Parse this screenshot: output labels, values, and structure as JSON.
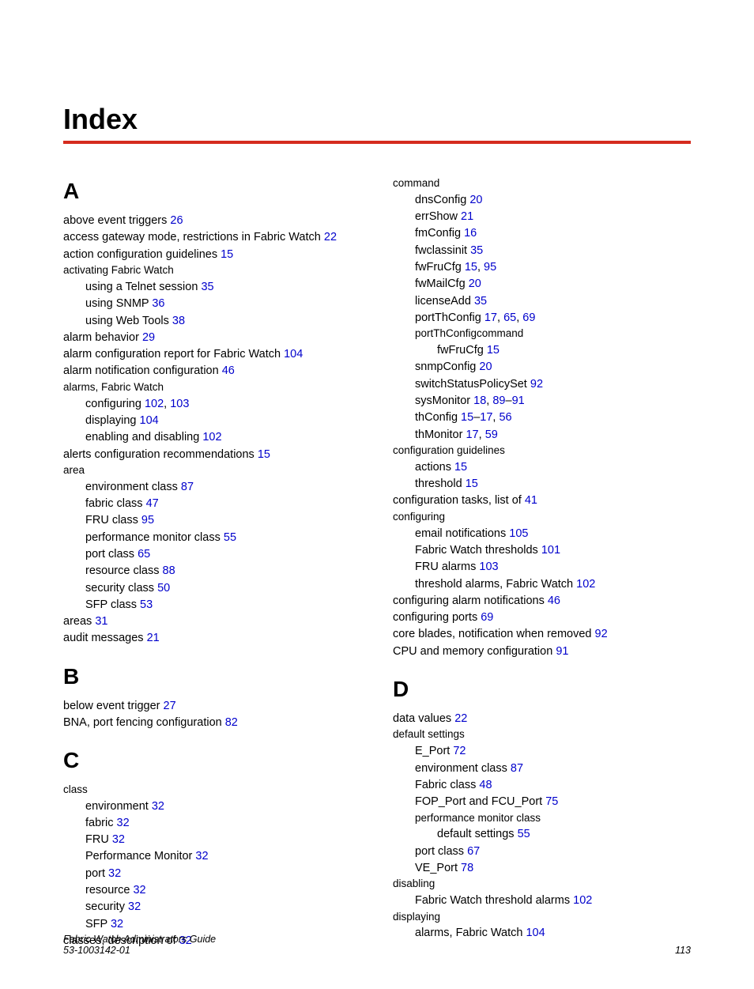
{
  "colors": {
    "rule": "#d52b1e",
    "link": "#0000cc",
    "text": "#000000",
    "bg": "#ffffff"
  },
  "title": "Index",
  "footer": {
    "book": "Fabric Watch Administrators Guide",
    "docnum": "53-1003142-01",
    "pagenum": "113"
  },
  "fonts": {
    "title_pt": 36,
    "letter_pt": 28,
    "body_pt": 14.5,
    "small_pt": 13.5,
    "footer_pt": 12.5
  },
  "left": [
    {
      "type": "letter",
      "text": "A"
    },
    {
      "type": "entry",
      "indent": 0,
      "text": "above event triggers ",
      "refs": [
        "26"
      ]
    },
    {
      "type": "entry",
      "indent": 0,
      "text": "access gateway mode, restrictions in Fabric Watch ",
      "refs": [
        "22"
      ]
    },
    {
      "type": "entry",
      "indent": 0,
      "text": "action configuration guidelines ",
      "refs": [
        "15"
      ]
    },
    {
      "type": "entry",
      "indent": 0,
      "small": true,
      "text": "activating Fabric Watch",
      "refs": []
    },
    {
      "type": "entry",
      "indent": 1,
      "text": "using a Telnet session ",
      "refs": [
        "35"
      ]
    },
    {
      "type": "entry",
      "indent": 1,
      "text": "using SNMP ",
      "refs": [
        "36"
      ]
    },
    {
      "type": "entry",
      "indent": 1,
      "text": "using Web Tools ",
      "refs": [
        "38"
      ]
    },
    {
      "type": "entry",
      "indent": 0,
      "text": "alarm behavior ",
      "refs": [
        "29"
      ]
    },
    {
      "type": "entry",
      "indent": 0,
      "text": "alarm configuration report for Fabric Watch ",
      "refs": [
        "104"
      ]
    },
    {
      "type": "entry",
      "indent": 0,
      "text": "alarm notification configuration ",
      "refs": [
        "46"
      ]
    },
    {
      "type": "entry",
      "indent": 0,
      "small": true,
      "text": "alarms, Fabric Watch",
      "refs": []
    },
    {
      "type": "entry",
      "indent": 1,
      "text": "configuring ",
      "refs": [
        "102",
        "103"
      ],
      "sep": ", "
    },
    {
      "type": "entry",
      "indent": 1,
      "text": "displaying ",
      "refs": [
        "104"
      ]
    },
    {
      "type": "entry",
      "indent": 1,
      "text": "enabling and disabling ",
      "refs": [
        "102"
      ]
    },
    {
      "type": "entry",
      "indent": 0,
      "text": "alerts configuration recommendations ",
      "refs": [
        "15"
      ]
    },
    {
      "type": "entry",
      "indent": 0,
      "small": true,
      "text": "area",
      "refs": []
    },
    {
      "type": "entry",
      "indent": 1,
      "text": "environment class ",
      "refs": [
        "87"
      ]
    },
    {
      "type": "entry",
      "indent": 1,
      "text": "fabric class ",
      "refs": [
        "47"
      ]
    },
    {
      "type": "entry",
      "indent": 1,
      "text": "FRU class ",
      "refs": [
        "95"
      ]
    },
    {
      "type": "entry",
      "indent": 1,
      "text": "performance monitor class ",
      "refs": [
        "55"
      ]
    },
    {
      "type": "entry",
      "indent": 1,
      "text": "port class ",
      "refs": [
        "65"
      ]
    },
    {
      "type": "entry",
      "indent": 1,
      "text": "resource class ",
      "refs": [
        "88"
      ]
    },
    {
      "type": "entry",
      "indent": 1,
      "text": "security class ",
      "refs": [
        "50"
      ]
    },
    {
      "type": "entry",
      "indent": 1,
      "text": "SFP class ",
      "refs": [
        "53"
      ]
    },
    {
      "type": "entry",
      "indent": 0,
      "text": "areas ",
      "refs": [
        "31"
      ]
    },
    {
      "type": "entry",
      "indent": 0,
      "text": "audit messages ",
      "refs": [
        "21"
      ]
    },
    {
      "type": "letter",
      "text": "B"
    },
    {
      "type": "entry",
      "indent": 0,
      "text": "below event trigger ",
      "refs": [
        "27"
      ]
    },
    {
      "type": "entry",
      "indent": 0,
      "text": "BNA, port fencing configuration ",
      "refs": [
        "82"
      ]
    },
    {
      "type": "letter",
      "text": "C"
    },
    {
      "type": "entry",
      "indent": 0,
      "small": true,
      "text": "class",
      "refs": []
    },
    {
      "type": "entry",
      "indent": 1,
      "text": "environment ",
      "refs": [
        "32"
      ]
    },
    {
      "type": "entry",
      "indent": 1,
      "text": "fabric ",
      "refs": [
        "32"
      ]
    },
    {
      "type": "entry",
      "indent": 1,
      "text": "FRU ",
      "refs": [
        "32"
      ]
    },
    {
      "type": "entry",
      "indent": 1,
      "text": "Performance Monitor ",
      "refs": [
        "32"
      ]
    },
    {
      "type": "entry",
      "indent": 1,
      "text": "port ",
      "refs": [
        "32"
      ]
    },
    {
      "type": "entry",
      "indent": 1,
      "text": "resource ",
      "refs": [
        "32"
      ]
    },
    {
      "type": "entry",
      "indent": 1,
      "text": "security ",
      "refs": [
        "32"
      ]
    },
    {
      "type": "entry",
      "indent": 1,
      "text": "SFP ",
      "refs": [
        "32"
      ]
    },
    {
      "type": "entry",
      "indent": 0,
      "text": "classes, description of ",
      "refs": [
        "32"
      ]
    }
  ],
  "right": [
    {
      "type": "entry",
      "indent": 0,
      "small": true,
      "text": "command",
      "refs": []
    },
    {
      "type": "entry",
      "indent": 1,
      "text": "dnsConfig ",
      "refs": [
        "20"
      ]
    },
    {
      "type": "entry",
      "indent": 1,
      "text": "errShow ",
      "refs": [
        "21"
      ]
    },
    {
      "type": "entry",
      "indent": 1,
      "text": "fmConfig ",
      "refs": [
        "16"
      ]
    },
    {
      "type": "entry",
      "indent": 1,
      "text": "fwclassinit ",
      "refs": [
        "35"
      ]
    },
    {
      "type": "entry",
      "indent": 1,
      "text": "fwFruCfg ",
      "refs": [
        "15",
        "95"
      ],
      "sep": ", "
    },
    {
      "type": "entry",
      "indent": 1,
      "text": "fwMailCfg ",
      "refs": [
        "20"
      ]
    },
    {
      "type": "entry",
      "indent": 1,
      "text": "licenseAdd ",
      "refs": [
        "35"
      ]
    },
    {
      "type": "entry",
      "indent": 1,
      "text": "portThConfig ",
      "refs": [
        "17",
        "65",
        "69"
      ],
      "sep": ", "
    },
    {
      "type": "entry",
      "indent": 1,
      "small": true,
      "text": "portThConfigcommand",
      "refs": []
    },
    {
      "type": "entry",
      "indent": 2,
      "text": "fwFruCfg ",
      "refs": [
        "15"
      ]
    },
    {
      "type": "entry",
      "indent": 1,
      "text": "snmpConfig ",
      "refs": [
        "20"
      ]
    },
    {
      "type": "entry",
      "indent": 1,
      "text": "switchStatusPolicySet ",
      "refs": [
        "92"
      ]
    },
    {
      "type": "entry",
      "indent": 1,
      "text": "sysMonitor ",
      "refs": [
        "18",
        "89–91"
      ],
      "sep": ", ",
      "range": [
        1
      ],
      "rangesep": "–"
    },
    {
      "type": "entry",
      "indent": 1,
      "text": "thConfig ",
      "refs": [
        "15–17",
        "56"
      ],
      "sep": ", ",
      "range": [
        0
      ],
      "rangesep": "–"
    },
    {
      "type": "entry",
      "indent": 1,
      "text": "thMonitor ",
      "refs": [
        "17",
        "59"
      ],
      "sep": ", "
    },
    {
      "type": "entry",
      "indent": 0,
      "small": true,
      "text": "configuration guidelines",
      "refs": []
    },
    {
      "type": "entry",
      "indent": 1,
      "text": "actions ",
      "refs": [
        "15"
      ]
    },
    {
      "type": "entry",
      "indent": 1,
      "text": "threshold ",
      "refs": [
        "15"
      ]
    },
    {
      "type": "entry",
      "indent": 0,
      "text": "configuration tasks, list of ",
      "refs": [
        "41"
      ]
    },
    {
      "type": "entry",
      "indent": 0,
      "small": true,
      "text": "configuring",
      "refs": []
    },
    {
      "type": "entry",
      "indent": 1,
      "text": "email notifications ",
      "refs": [
        "105"
      ]
    },
    {
      "type": "entry",
      "indent": 1,
      "text": "Fabric Watch thresholds ",
      "refs": [
        "101"
      ]
    },
    {
      "type": "entry",
      "indent": 1,
      "text": "FRU alarms ",
      "refs": [
        "103"
      ]
    },
    {
      "type": "entry",
      "indent": 1,
      "text": "threshold alarms, Fabric Watch ",
      "refs": [
        "102"
      ]
    },
    {
      "type": "entry",
      "indent": 0,
      "text": "configuring alarm notifications ",
      "refs": [
        "46"
      ]
    },
    {
      "type": "entry",
      "indent": 0,
      "text": "configuring ports ",
      "refs": [
        "69"
      ]
    },
    {
      "type": "entry",
      "indent": 0,
      "text": "core blades, notification when removed ",
      "refs": [
        "92"
      ]
    },
    {
      "type": "entry",
      "indent": 0,
      "text": "CPU and memory configuration ",
      "refs": [
        "91"
      ]
    },
    {
      "type": "letter",
      "text": "D"
    },
    {
      "type": "entry",
      "indent": 0,
      "text": "data values ",
      "refs": [
        "22"
      ]
    },
    {
      "type": "entry",
      "indent": 0,
      "small": true,
      "text": "default settings",
      "refs": []
    },
    {
      "type": "entry",
      "indent": 1,
      "text": "E_Port ",
      "refs": [
        "72"
      ]
    },
    {
      "type": "entry",
      "indent": 1,
      "text": "environment class ",
      "refs": [
        "87"
      ]
    },
    {
      "type": "entry",
      "indent": 1,
      "text": "Fabric class ",
      "refs": [
        "48"
      ]
    },
    {
      "type": "entry",
      "indent": 1,
      "text": "FOP_Port and FCU_Port ",
      "refs": [
        "75"
      ]
    },
    {
      "type": "entry",
      "indent": 1,
      "small": true,
      "text": "performance monitor class",
      "refs": []
    },
    {
      "type": "entry",
      "indent": 2,
      "text": "default settings ",
      "refs": [
        "55"
      ]
    },
    {
      "type": "entry",
      "indent": 1,
      "text": "port class ",
      "refs": [
        "67"
      ]
    },
    {
      "type": "entry",
      "indent": 1,
      "text": "VE_Port ",
      "refs": [
        "78"
      ]
    },
    {
      "type": "entry",
      "indent": 0,
      "small": true,
      "text": "disabling",
      "refs": []
    },
    {
      "type": "entry",
      "indent": 1,
      "text": "Fabric Watch threshold alarms ",
      "refs": [
        "102"
      ]
    },
    {
      "type": "entry",
      "indent": 0,
      "small": true,
      "text": "displaying",
      "refs": []
    },
    {
      "type": "entry",
      "indent": 1,
      "text": "alarms, Fabric Watch ",
      "refs": [
        "104"
      ]
    }
  ]
}
